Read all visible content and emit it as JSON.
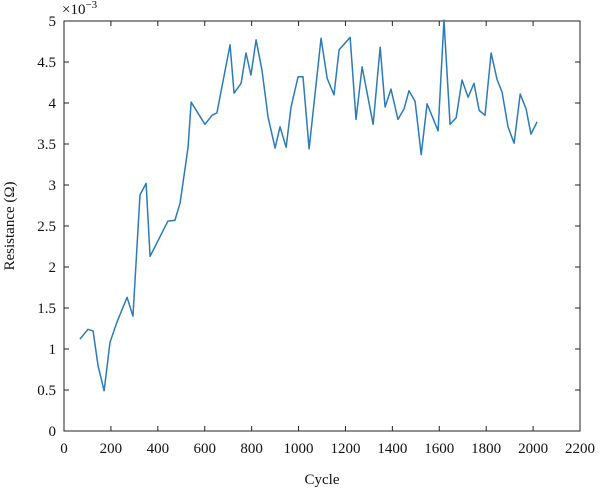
{
  "chart_data": {
    "type": "line",
    "x_label": "Cycle",
    "y_label": "Resistance (Ω)",
    "y_multiplier": {
      "base": "×10",
      "exponent": "−3"
    },
    "color": "#2b7bba",
    "x": [
      68,
      102,
      124,
      145,
      171,
      196,
      226,
      269,
      294,
      324,
      350,
      367,
      443,
      473,
      495,
      529,
      542,
      601,
      631,
      652,
      708,
      725,
      755,
      776,
      797,
      819,
      844,
      870,
      900,
      921,
      947,
      968,
      998,
      1019,
      1045,
      1096,
      1122,
      1151,
      1173,
      1220,
      1245,
      1271,
      1318,
      1348,
      1369,
      1394,
      1424,
      1450,
      1471,
      1497,
      1523,
      1548,
      1595,
      1620,
      1646,
      1672,
      1697,
      1723,
      1748,
      1770,
      1795,
      1821,
      1846,
      1868,
      1893,
      1919,
      1945,
      1970,
      1991,
      2017
    ],
    "values": [
      1.12,
      1.24,
      1.22,
      0.8,
      0.49,
      1.08,
      1.33,
      1.63,
      1.4,
      2.88,
      3.02,
      2.13,
      2.56,
      2.57,
      2.78,
      3.46,
      4.01,
      3.74,
      3.85,
      3.88,
      4.71,
      4.12,
      4.24,
      4.61,
      4.34,
      4.77,
      4.4,
      3.83,
      3.45,
      3.71,
      3.46,
      3.95,
      4.32,
      4.32,
      3.44,
      4.79,
      4.3,
      4.1,
      4.65,
      4.8,
      3.8,
      4.44,
      3.74,
      4.68,
      3.95,
      4.17,
      3.8,
      3.93,
      4.15,
      4.02,
      3.37,
      3.99,
      3.66,
      5.01,
      3.74,
      3.82,
      4.28,
      4.07,
      4.24,
      3.91,
      3.85,
      4.61,
      4.29,
      4.13,
      3.71,
      3.51,
      4.11,
      3.93,
      3.62,
      3.77
    ],
    "xlim": [
      0,
      2200
    ],
    "xticks": [
      0,
      200,
      400,
      600,
      800,
      1000,
      1200,
      1400,
      1600,
      1800,
      2000,
      2200
    ],
    "ylim": [
      0,
      5
    ],
    "yticks": [
      0,
      0.5,
      1,
      1.5,
      2,
      2.5,
      3,
      3.5,
      4,
      4.5,
      5
    ]
  }
}
